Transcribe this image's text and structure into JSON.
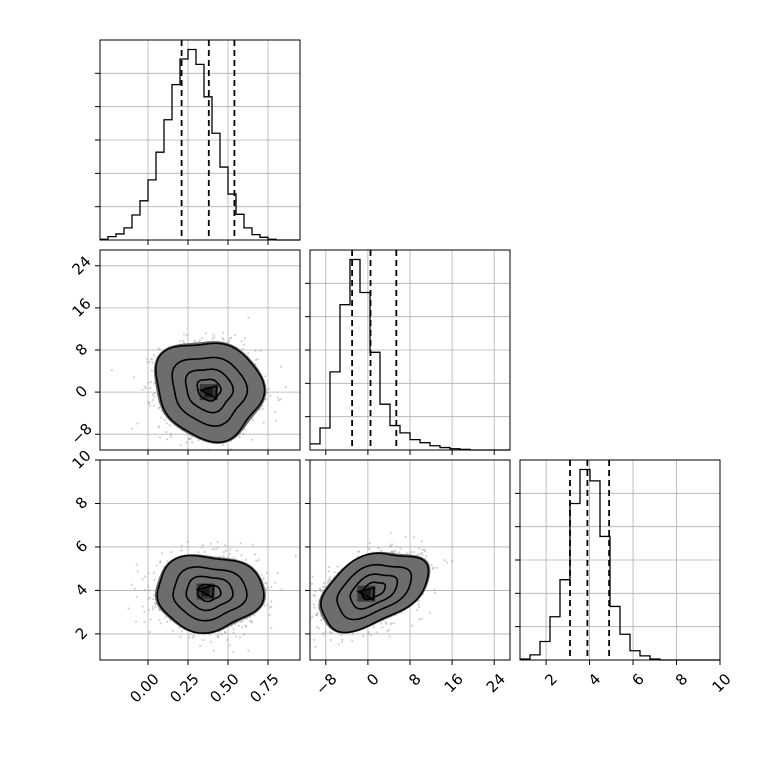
{
  "chart_data": {
    "type": "corner",
    "params": [
      {
        "range": [
          -0.3,
          0.95
        ],
        "ticks": [
          0.0,
          0.25,
          0.5,
          0.75
        ],
        "tick_labels": [
          "0.00",
          "0.25",
          "0.50",
          "0.75"
        ],
        "quantiles": [
          0.21,
          0.38,
          0.54
        ]
      },
      {
        "range": [
          -11,
          27
        ],
        "ticks": [
          -8,
          0,
          8,
          16,
          24
        ],
        "tick_labels": [
          "−8",
          "0",
          "8",
          "16",
          "24"
        ],
        "quantiles": [
          -3,
          0.5,
          5.4
        ]
      },
      {
        "range": [
          0.8,
          10
        ],
        "ticks": [
          2,
          4,
          6,
          8,
          10
        ],
        "tick_labels": [
          "2",
          "4",
          "6",
          "8",
          "10"
        ],
        "quantiles": [
          3.1,
          3.9,
          4.9
        ]
      }
    ],
    "histograms": [
      {
        "param": 0,
        "bin_start": -0.3,
        "bin_width": 0.05,
        "counts": [
          1,
          5,
          9,
          18,
          37,
          58,
          89,
          130,
          178,
          230,
          268,
          282,
          260,
          212,
          158,
          108,
          68,
          38,
          18,
          8,
          4,
          1,
          0,
          0,
          0
        ]
      },
      {
        "param": 1,
        "bin_start": -11,
        "bin_width": 1.9,
        "counts": [
          10,
          36,
          128,
          238,
          312,
          258,
          160,
          75,
          40,
          28,
          17,
          12,
          7,
          4,
          2,
          1,
          0,
          0,
          0,
          0
        ]
      },
      {
        "param": 2,
        "bin_start": 0.8,
        "bin_width": 0.46,
        "counts": [
          1,
          5,
          18,
          42,
          78,
          152,
          185,
          174,
          120,
          52,
          25,
          9,
          4,
          1,
          0,
          0,
          0,
          0,
          0,
          0
        ]
      }
    ],
    "panels_2d": [
      {
        "x": 0,
        "y": 1,
        "center": [
          0.38,
          0.5
        ],
        "sd": [
          0.15,
          4.2
        ],
        "corr": -0.1,
        "peak": [
          0.38,
          0.0
        ]
      },
      {
        "x": 0,
        "y": 2,
        "center": [
          0.38,
          3.9
        ],
        "sd": [
          0.15,
          0.78
        ],
        "corr": 0.0,
        "peak": [
          0.36,
          3.95
        ]
      },
      {
        "x": 1,
        "y": 2,
        "center": [
          1.0,
          4.0
        ],
        "sd": [
          4.6,
          0.8
        ],
        "corr": 0.42,
        "peak": [
          -0.3,
          3.85
        ]
      }
    ],
    "contour_levels": [
      0.12,
      0.4,
      0.72,
      0.93
    ],
    "grid": true,
    "legend": "none"
  }
}
